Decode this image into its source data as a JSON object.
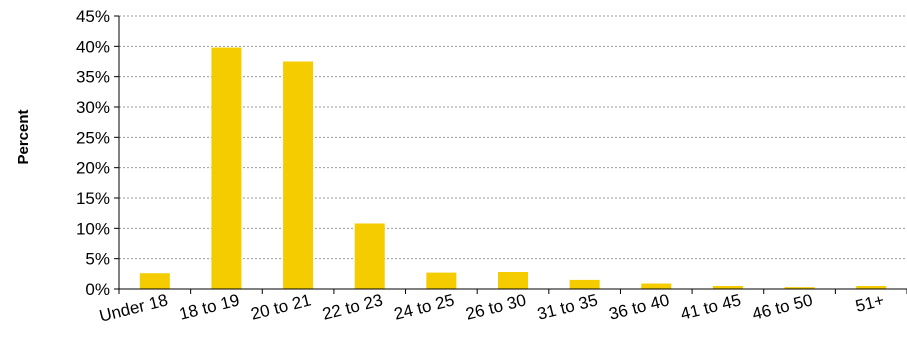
{
  "chart_data": {
    "type": "bar",
    "title": "",
    "ylabel": "Percent",
    "xlabel": "",
    "categories": [
      "Under 18",
      "18 to 19",
      "20 to 21",
      "22 to 23",
      "24 to 25",
      "26 to 30",
      "31 to 35",
      "36 to 40",
      "41 to 45",
      "46 to 50",
      "51+"
    ],
    "values": [
      2.6,
      39.8,
      37.5,
      10.8,
      2.7,
      2.8,
      1.5,
      0.9,
      0.5,
      0.3,
      0.5
    ],
    "ylim": [
      0,
      45
    ],
    "yticks": [
      0,
      5,
      10,
      15,
      20,
      25,
      30,
      35,
      40,
      45
    ],
    "ytick_labels": [
      "0%",
      "5%",
      "10%",
      "15%",
      "20%",
      "25%",
      "30%",
      "35%",
      "40%",
      "45%"
    ],
    "grid": true,
    "bar_color": "#f5cc00"
  }
}
